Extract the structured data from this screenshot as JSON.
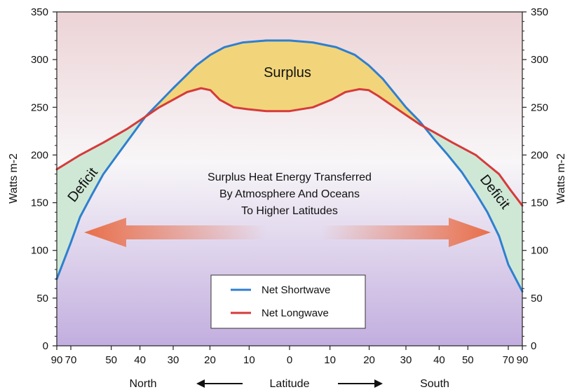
{
  "chart_data": {
    "type": "line",
    "xlabel": "Latitude",
    "xlabel_left": "North",
    "xlabel_right": "South",
    "ylabel": "Watts",
    "ylabel_unit": "m-2",
    "ylim": [
      0,
      350
    ],
    "yticks": [
      0,
      50,
      100,
      150,
      200,
      250,
      300,
      350
    ],
    "xtick_labels": [
      "90",
      "70",
      "50",
      "40",
      "30",
      "20",
      "10",
      "0",
      "10",
      "20",
      "30",
      "40",
      "50",
      "70",
      "90"
    ],
    "xtick_sines": [
      -1,
      -0.9397,
      -0.766,
      -0.6428,
      -0.5,
      -0.342,
      -0.1736,
      0,
      0.1736,
      0.342,
      0.5,
      0.6428,
      0.766,
      0.9397,
      1
    ],
    "x_scale": "sine of latitude (North negative, South positive)",
    "series": [
      {
        "name": "Net Shortwave",
        "color": "#2f7fcf",
        "x": [
          -1,
          -0.94,
          -0.9,
          -0.85,
          -0.8,
          -0.74,
          -0.68,
          -0.62,
          -0.56,
          -0.5,
          -0.45,
          -0.4,
          -0.34,
          -0.28,
          -0.2,
          -0.1,
          0,
          0.1,
          0.2,
          0.28,
          0.34,
          0.4,
          0.45,
          0.5,
          0.56,
          0.62,
          0.68,
          0.74,
          0.8,
          0.85,
          0.9,
          0.94,
          1
        ],
        "values": [
          70,
          108,
          135,
          158,
          180,
          200,
          220,
          240,
          255,
          270,
          282,
          294,
          305,
          313,
          318,
          320,
          320,
          318,
          313,
          305,
          294,
          280,
          265,
          250,
          235,
          217,
          200,
          182,
          160,
          140,
          115,
          85,
          57
        ]
      },
      {
        "name": "Net Longwave",
        "color": "#d63a3a",
        "x": [
          -1,
          -0.9,
          -0.8,
          -0.7,
          -0.62,
          -0.56,
          -0.5,
          -0.44,
          -0.38,
          -0.34,
          -0.3,
          -0.24,
          -0.18,
          -0.1,
          0,
          0.1,
          0.18,
          0.24,
          0.3,
          0.34,
          0.38,
          0.44,
          0.5,
          0.56,
          0.62,
          0.7,
          0.8,
          0.85,
          0.9,
          0.95,
          1
        ],
        "values": [
          185,
          200,
          213,
          227,
          240,
          250,
          258,
          266,
          270,
          268,
          258,
          250,
          248,
          246,
          246,
          250,
          258,
          266,
          269,
          268,
          262,
          252,
          242,
          232,
          224,
          213,
          200,
          190,
          180,
          163,
          147
        ]
      }
    ],
    "legend_position": "bottom-center",
    "annotations": {
      "surplus": "Surplus",
      "deficit_left": "Deficit",
      "deficit_right": "Deficit",
      "transfer_lines": [
        "Surplus Heat Energy Transferred",
        "By Atmosphere And Oceans",
        "To Higher Latitudes"
      ]
    },
    "colors": {
      "surplus_fill": "#f2d57a",
      "deficit_fill": "#cfe8d6",
      "bg_top": "#ecd3d6",
      "bg_mid": "#f8f6f8",
      "bg_bottom": "#c2aedf",
      "arrow": "#e96f4a"
    }
  }
}
